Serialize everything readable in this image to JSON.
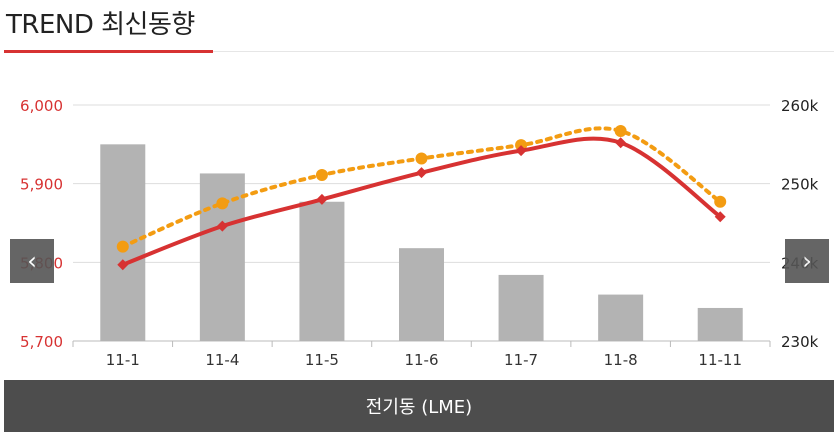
{
  "header": {
    "title": "TREND 최신동향"
  },
  "footer": {
    "label": "전기동 (LME)"
  },
  "nav": {
    "prev_glyph": "‹",
    "next_glyph": "›"
  },
  "colors": {
    "accent": "#d73232",
    "orange": "#f39c12",
    "bar": "#b3b3b3",
    "footer_bg": "#4d4d4d"
  },
  "chart_data": {
    "type": "bar",
    "categories": [
      "11-1",
      "11-4",
      "11-5",
      "11-6",
      "11-7",
      "11-8",
      "11-11"
    ],
    "bars": {
      "axis": "right",
      "values": [
        255000,
        251300,
        247700,
        241800,
        238400,
        235900,
        234200
      ]
    },
    "series": [
      {
        "style": "line",
        "color": "#d73232",
        "marker": "diamond",
        "axis": "left",
        "values": [
          5797,
          5846,
          5880,
          5914,
          5942,
          5952,
          5858
        ]
      },
      {
        "style": "dotted",
        "color": "#f39c12",
        "marker": "circle",
        "axis": "left",
        "values": [
          5820,
          5875,
          5911,
          5932,
          5949,
          5967,
          5877
        ]
      }
    ],
    "y_left": {
      "range": [
        5700,
        6000
      ],
      "ticks": [
        "5,700",
        "5,800",
        "5,900",
        "6,000"
      ],
      "tick_values": [
        5700,
        5800,
        5900,
        6000
      ]
    },
    "y_right": {
      "range": [
        230000,
        260000
      ],
      "ticks": [
        "230k",
        "240k",
        "250k",
        "260k"
      ],
      "tick_values": [
        230000,
        240000,
        250000,
        260000
      ]
    },
    "grid": true
  }
}
